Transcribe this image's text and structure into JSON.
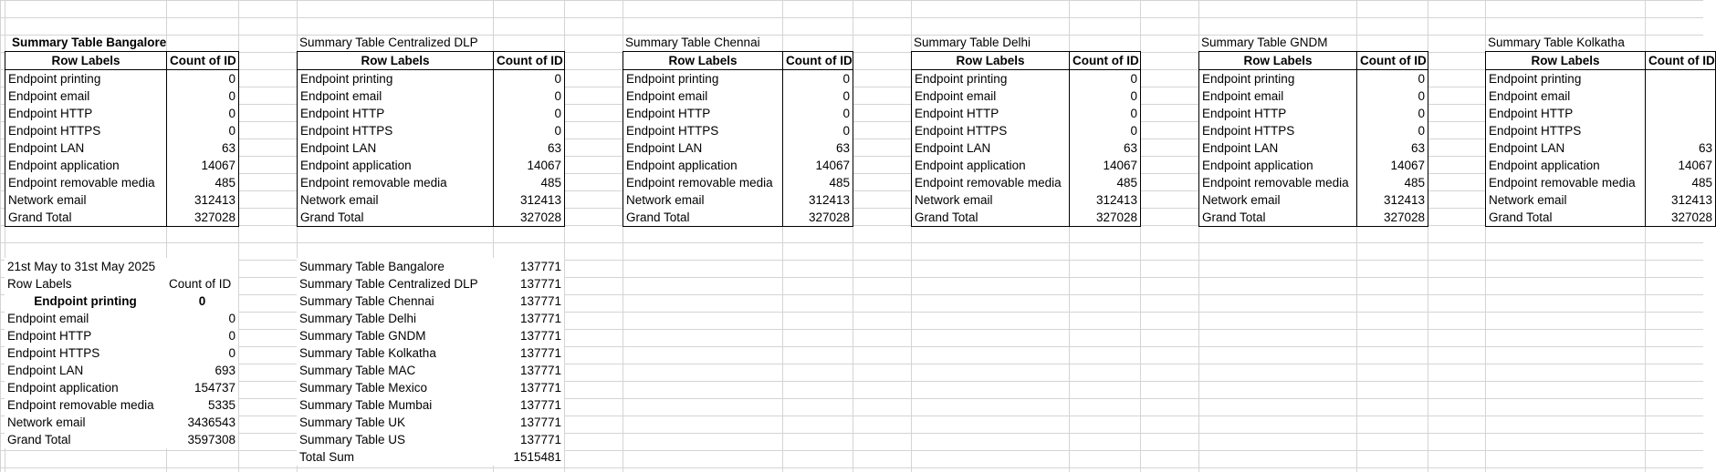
{
  "top_tables": [
    {
      "title": "Summary Table Bangalore",
      "title_bold": true,
      "col1": "Row Labels",
      "col2": "Count of ID",
      "rows": [
        {
          "label": "Endpoint printing",
          "value": "0"
        },
        {
          "label": "Endpoint email",
          "value": "0"
        },
        {
          "label": "Endpoint HTTP",
          "value": "0"
        },
        {
          "label": "Endpoint HTTPS",
          "value": "0"
        },
        {
          "label": "Endpoint LAN",
          "value": "63"
        },
        {
          "label": "Endpoint application",
          "value": "14067"
        },
        {
          "label": "Endpoint removable media",
          "value": "485"
        },
        {
          "label": "Network email",
          "value": "312413"
        },
        {
          "label": "Grand Total",
          "value": "327028"
        }
      ]
    },
    {
      "title": "Summary Table Centralized DLP",
      "title_bold": false,
      "col1": "Row Labels",
      "col2": "Count of ID",
      "rows": [
        {
          "label": "Endpoint printing",
          "value": "0"
        },
        {
          "label": "Endpoint email",
          "value": "0"
        },
        {
          "label": "Endpoint HTTP",
          "value": "0"
        },
        {
          "label": "Endpoint HTTPS",
          "value": "0"
        },
        {
          "label": "Endpoint LAN",
          "value": "63"
        },
        {
          "label": "Endpoint application",
          "value": "14067"
        },
        {
          "label": "Endpoint removable media",
          "value": "485"
        },
        {
          "label": "Network email",
          "value": "312413"
        },
        {
          "label": "Grand Total",
          "value": "327028"
        }
      ]
    },
    {
      "title": "Summary Table Chennai",
      "title_bold": false,
      "col1": "Row Labels",
      "col2": "Count of ID",
      "rows": [
        {
          "label": "Endpoint printing",
          "value": "0"
        },
        {
          "label": "Endpoint email",
          "value": "0"
        },
        {
          "label": "Endpoint HTTP",
          "value": "0"
        },
        {
          "label": "Endpoint HTTPS",
          "value": "0"
        },
        {
          "label": "Endpoint LAN",
          "value": "63"
        },
        {
          "label": "Endpoint application",
          "value": "14067"
        },
        {
          "label": "Endpoint removable media",
          "value": "485"
        },
        {
          "label": "Network email",
          "value": "312413"
        },
        {
          "label": "Grand Total",
          "value": "327028"
        }
      ]
    },
    {
      "title": "Summary Table Delhi",
      "title_bold": false,
      "col1": "Row Labels",
      "col2": "Count of ID",
      "rows": [
        {
          "label": "Endpoint printing",
          "value": "0"
        },
        {
          "label": "Endpoint email",
          "value": "0"
        },
        {
          "label": "Endpoint HTTP",
          "value": "0"
        },
        {
          "label": "Endpoint HTTPS",
          "value": "0"
        },
        {
          "label": "Endpoint LAN",
          "value": "63"
        },
        {
          "label": "Endpoint application",
          "value": "14067"
        },
        {
          "label": "Endpoint removable media",
          "value": "485"
        },
        {
          "label": "Network email",
          "value": "312413"
        },
        {
          "label": "Grand Total",
          "value": "327028"
        }
      ]
    },
    {
      "title": "Summary Table GNDM",
      "title_bold": false,
      "col1": "Row Labels",
      "col2": "Count of ID",
      "rows": [
        {
          "label": "Endpoint printing",
          "value": "0"
        },
        {
          "label": "Endpoint email",
          "value": "0"
        },
        {
          "label": "Endpoint HTTP",
          "value": "0"
        },
        {
          "label": "Endpoint HTTPS",
          "value": "0"
        },
        {
          "label": "Endpoint LAN",
          "value": "63"
        },
        {
          "label": "Endpoint application",
          "value": "14067"
        },
        {
          "label": "Endpoint removable media",
          "value": "485"
        },
        {
          "label": "Network email",
          "value": "312413"
        },
        {
          "label": "Grand Total",
          "value": "327028"
        }
      ]
    },
    {
      "title": "Summary Table Kolkatha",
      "title_bold": false,
      "col1": "Row Labels",
      "col2": "Count of ID",
      "rows": [
        {
          "label": "Endpoint printing",
          "value": ""
        },
        {
          "label": "Endpoint email",
          "value": ""
        },
        {
          "label": "Endpoint HTTP",
          "value": ""
        },
        {
          "label": "Endpoint HTTPS",
          "value": ""
        },
        {
          "label": "Endpoint LAN",
          "value": "63"
        },
        {
          "label": "Endpoint application",
          "value": "14067"
        },
        {
          "label": "Endpoint removable media",
          "value": "485"
        },
        {
          "label": "Network email",
          "value": "312413"
        },
        {
          "label": "Grand Total",
          "value": "327028"
        }
      ]
    }
  ],
  "date_table": {
    "title": "21st May to 31st May 2025",
    "col1": "Row Labels",
    "col2": "Count of ID",
    "bold_row": {
      "label": "Endpoint printing",
      "value": "0"
    },
    "rows": [
      {
        "label": "Endpoint email",
        "value": "0"
      },
      {
        "label": "Endpoint HTTP",
        "value": "0"
      },
      {
        "label": "Endpoint HTTPS",
        "value": "0"
      },
      {
        "label": "Endpoint LAN",
        "value": "693"
      },
      {
        "label": "Endpoint application",
        "value": "154737"
      },
      {
        "label": "Endpoint removable media",
        "value": "5335"
      },
      {
        "label": "Network email",
        "value": "3436543"
      },
      {
        "label": "Grand Total",
        "value": "3597308"
      }
    ]
  },
  "sum_table": {
    "rows": [
      {
        "label": "Summary Table Bangalore",
        "value": "137771"
      },
      {
        "label": "Summary Table Centralized DLP",
        "value": "137771"
      },
      {
        "label": "Summary Table Chennai",
        "value": "137771"
      },
      {
        "label": "Summary Table Delhi",
        "value": "137771"
      },
      {
        "label": "Summary Table GNDM",
        "value": "137771"
      },
      {
        "label": "Summary Table Kolkatha",
        "value": "137771"
      },
      {
        "label": "Summary Table MAC",
        "value": "137771"
      },
      {
        "label": "Summary Table Mexico",
        "value": "137771"
      },
      {
        "label": "Summary Table Mumbai",
        "value": "137771"
      },
      {
        "label": "Summary Table UK",
        "value": "137771"
      },
      {
        "label": "Summary Table US",
        "value": "137771"
      },
      {
        "label": "Total Sum",
        "value": "1515481"
      }
    ]
  },
  "colors": {
    "gridline": "#d4d4d4",
    "border": "#000000",
    "background": "#ffffff"
  }
}
